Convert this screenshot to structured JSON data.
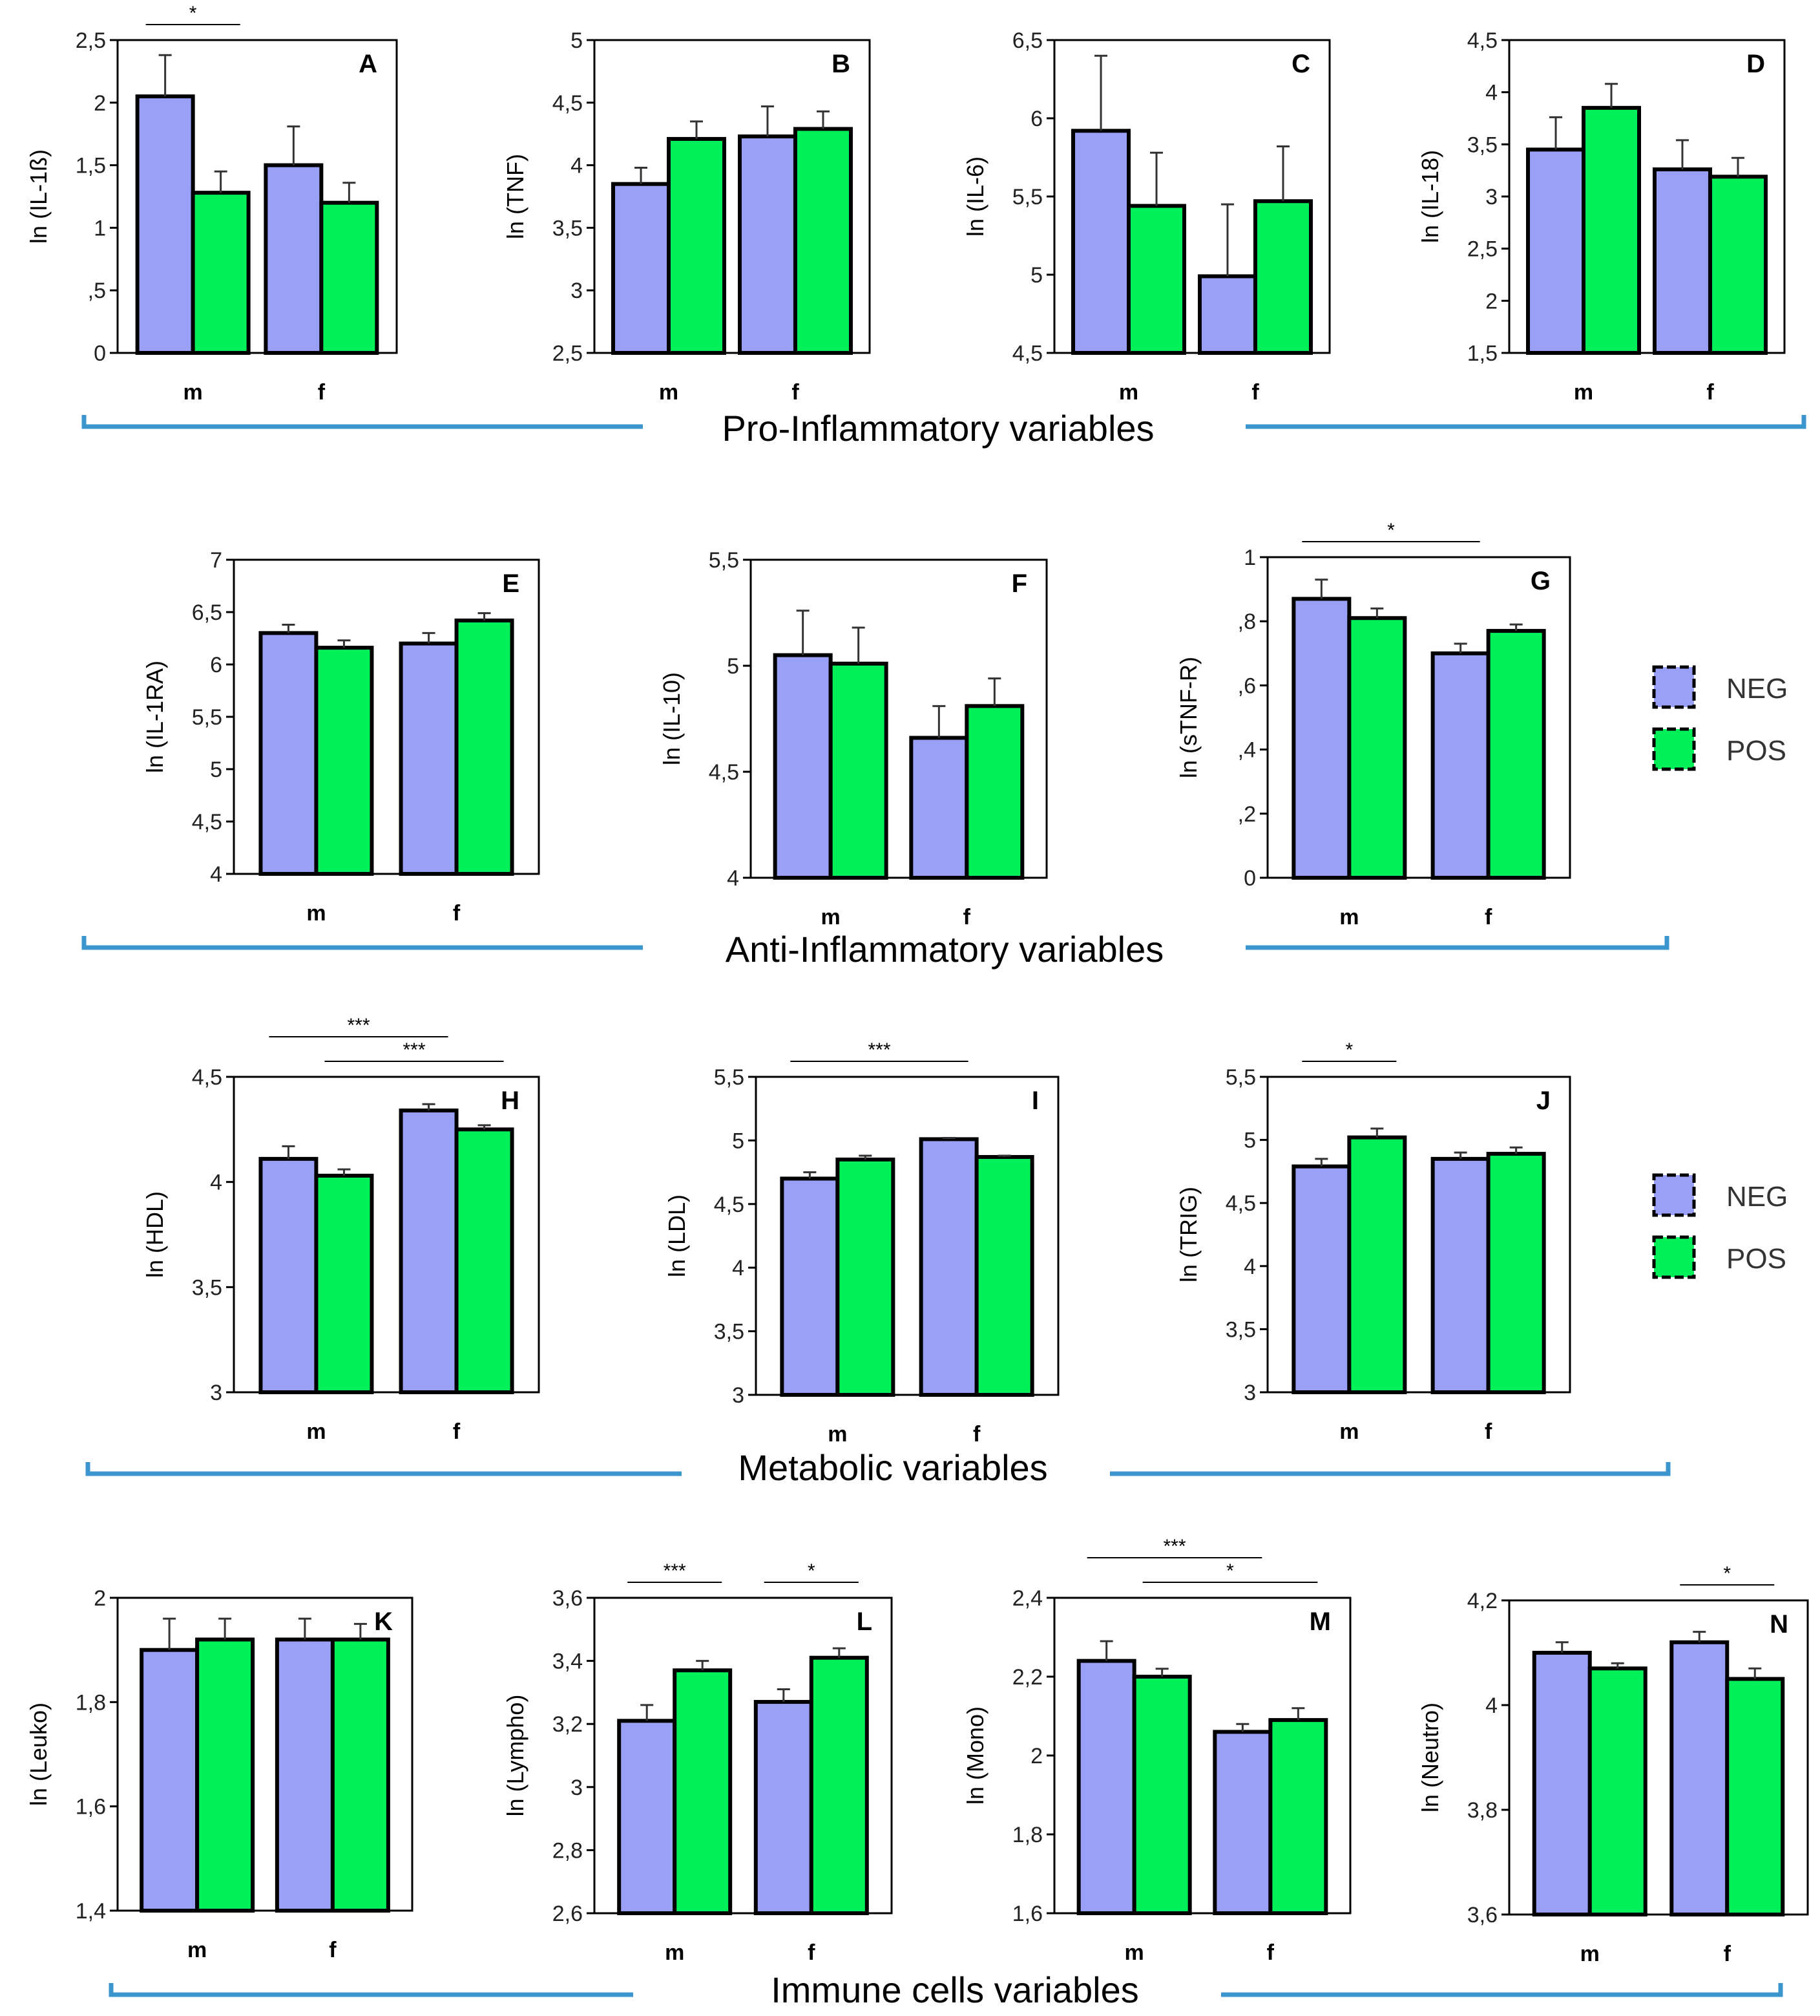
{
  "colors": {
    "NEG": "#9aa0f6",
    "POS": "#00f05a",
    "bracket": "#3a96cc",
    "axis": "#000000"
  },
  "legend": {
    "items": [
      {
        "key": "NEG",
        "label": "NEG"
      },
      {
        "key": "POS",
        "label": "POS"
      }
    ]
  },
  "groups": [
    {
      "id": "pro",
      "label": "Pro-Inflammatory variables"
    },
    {
      "id": "anti",
      "label": "Anti-Inflammatory variables"
    },
    {
      "id": "meta",
      "label": "Metabolic variables"
    },
    {
      "id": "immune",
      "label": "Immune cells variables"
    }
  ],
  "chart_data": [
    {
      "id": "A",
      "type": "bar",
      "letter": "A",
      "ylabel": "ln (IL-1ß)",
      "categories": [
        "m",
        "f"
      ],
      "ylim": [
        0,
        2.5
      ],
      "ticks": [
        "0",
        ",5",
        "1",
        "1,5",
        "2",
        "2,5"
      ],
      "series": [
        {
          "name": "NEG",
          "values": [
            2.05,
            1.5
          ],
          "errors": [
            0.33,
            0.31
          ]
        },
        {
          "name": "POS",
          "values": [
            1.28,
            1.2
          ],
          "errors": [
            0.17,
            0.16
          ]
        }
      ],
      "significance": [
        {
          "label": "*",
          "from": [
            "m",
            "NEG"
          ],
          "to": [
            "m",
            "POS"
          ],
          "level": 0
        }
      ]
    },
    {
      "id": "B",
      "type": "bar",
      "letter": "B",
      "ylabel": "ln (TNF)",
      "categories": [
        "m",
        "f"
      ],
      "ylim": [
        2.5,
        5
      ],
      "ticks": [
        "2,5",
        "3",
        "3,5",
        "4",
        "4,5",
        "5"
      ],
      "series": [
        {
          "name": "NEG",
          "values": [
            3.85,
            4.23
          ],
          "errors": [
            0.13,
            0.24
          ]
        },
        {
          "name": "POS",
          "values": [
            4.21,
            4.29
          ],
          "errors": [
            0.14,
            0.14
          ]
        }
      ],
      "significance": []
    },
    {
      "id": "C",
      "type": "bar",
      "letter": "C",
      "ylabel": "ln (IL-6)",
      "categories": [
        "m",
        "f"
      ],
      "ylim": [
        4.5,
        6.5
      ],
      "ticks": [
        "4,5",
        "5",
        "5,5",
        "6",
        "6,5"
      ],
      "series": [
        {
          "name": "NEG",
          "values": [
            5.92,
            4.99
          ],
          "errors": [
            0.48,
            0.46
          ]
        },
        {
          "name": "POS",
          "values": [
            5.44,
            5.47
          ],
          "errors": [
            0.34,
            0.35
          ]
        }
      ],
      "significance": []
    },
    {
      "id": "D",
      "type": "bar",
      "letter": "D",
      "ylabel": "ln (IL-18)",
      "categories": [
        "m",
        "f"
      ],
      "ylim": [
        1.5,
        4.5
      ],
      "ticks": [
        "1,5",
        "2",
        "2,5",
        "3",
        "3,5",
        "4",
        "4,5"
      ],
      "series": [
        {
          "name": "NEG",
          "values": [
            3.45,
            3.26
          ],
          "errors": [
            0.31,
            0.28
          ]
        },
        {
          "name": "POS",
          "values": [
            3.85,
            3.19
          ],
          "errors": [
            0.23,
            0.18
          ]
        }
      ],
      "significance": []
    },
    {
      "id": "E",
      "type": "bar",
      "letter": "E",
      "ylabel": "ln (IL-1RA)",
      "categories": [
        "m",
        "f"
      ],
      "ylim": [
        4,
        7
      ],
      "ticks": [
        "4",
        "4,5",
        "5",
        "5,5",
        "6",
        "6,5",
        "7"
      ],
      "series": [
        {
          "name": "NEG",
          "values": [
            6.3,
            6.2
          ],
          "errors": [
            0.08,
            0.1
          ]
        },
        {
          "name": "POS",
          "values": [
            6.16,
            6.42
          ],
          "errors": [
            0.07,
            0.07
          ]
        }
      ],
      "significance": []
    },
    {
      "id": "F",
      "type": "bar",
      "letter": "F",
      "ylabel": "ln (IL-10)",
      "categories": [
        "m",
        "f"
      ],
      "ylim": [
        4,
        5.5
      ],
      "ticks": [
        "4",
        "4,5",
        "5",
        "5,5"
      ],
      "series": [
        {
          "name": "NEG",
          "values": [
            5.05,
            4.66
          ],
          "errors": [
            0.21,
            0.15
          ]
        },
        {
          "name": "POS",
          "values": [
            5.01,
            4.81
          ],
          "errors": [
            0.17,
            0.13
          ]
        }
      ],
      "significance": []
    },
    {
      "id": "G",
      "type": "bar",
      "letter": "G",
      "ylabel": "ln (sTNF-R)",
      "categories": [
        "m",
        "f"
      ],
      "ylim": [
        0,
        1
      ],
      "ticks": [
        "0",
        ",2",
        ",4",
        ",6",
        ",8",
        "1"
      ],
      "series": [
        {
          "name": "NEG",
          "values": [
            0.87,
            0.7
          ],
          "errors": [
            0.06,
            0.03
          ]
        },
        {
          "name": "POS",
          "values": [
            0.81,
            0.77
          ],
          "errors": [
            0.03,
            0.02
          ]
        }
      ],
      "significance": [
        {
          "label": "*",
          "from": [
            "m",
            "NEG"
          ],
          "to": [
            "f",
            "NEG"
          ],
          "level": 0
        }
      ]
    },
    {
      "id": "H",
      "type": "bar",
      "letter": "H",
      "ylabel": "ln (HDL)",
      "categories": [
        "m",
        "f"
      ],
      "ylim": [
        3,
        4.5
      ],
      "ticks": [
        "3",
        "3,5",
        "4",
        "4,5"
      ],
      "series": [
        {
          "name": "NEG",
          "values": [
            4.11,
            4.34
          ],
          "errors": [
            0.06,
            0.03
          ]
        },
        {
          "name": "POS",
          "values": [
            4.03,
            4.25
          ],
          "errors": [
            0.03,
            0.02
          ]
        }
      ],
      "significance": [
        {
          "label": "***",
          "from": [
            "m",
            "NEG"
          ],
          "to": [
            "f",
            "NEG"
          ],
          "level": 1
        },
        {
          "label": "***",
          "from": [
            "m",
            "POS"
          ],
          "to": [
            "f",
            "POS"
          ],
          "level": 0
        }
      ]
    },
    {
      "id": "I",
      "type": "bar",
      "letter": "I",
      "ylabel": "ln (LDL)",
      "categories": [
        "m",
        "f"
      ],
      "ylim": [
        3,
        5.5
      ],
      "ticks": [
        "3",
        "3,5",
        "4",
        "4,5",
        "5",
        "5,5"
      ],
      "series": [
        {
          "name": "NEG",
          "values": [
            4.7,
            5.01
          ],
          "errors": [
            0.05,
            0.01
          ]
        },
        {
          "name": "POS",
          "values": [
            4.85,
            4.87
          ],
          "errors": [
            0.03,
            0.01
          ]
        }
      ],
      "significance": [
        {
          "label": "***",
          "from": [
            "m",
            "NEG"
          ],
          "to": [
            "f",
            "NEG"
          ],
          "level": 0
        }
      ]
    },
    {
      "id": "J",
      "type": "bar",
      "letter": "J",
      "ylabel": "ln (TRIG)",
      "categories": [
        "m",
        "f"
      ],
      "ylim": [
        3,
        5.5
      ],
      "ticks": [
        "3",
        "3,5",
        "4",
        "4,5",
        "5",
        "5,5"
      ],
      "series": [
        {
          "name": "NEG",
          "values": [
            4.79,
            4.85
          ],
          "errors": [
            0.06,
            0.05
          ]
        },
        {
          "name": "POS",
          "values": [
            5.02,
            4.89
          ],
          "errors": [
            0.07,
            0.05
          ]
        }
      ],
      "significance": [
        {
          "label": "*",
          "from": [
            "m",
            "NEG"
          ],
          "to": [
            "m",
            "POS"
          ],
          "level": 0
        }
      ]
    },
    {
      "id": "K",
      "type": "bar",
      "letter": "K",
      "ylabel": "ln (Leuko)",
      "categories": [
        "m",
        "f"
      ],
      "ylim": [
        1.4,
        2
      ],
      "ticks": [
        "1,4",
        "1,6",
        "1,8",
        "2"
      ],
      "series": [
        {
          "name": "NEG",
          "values": [
            1.9,
            1.92
          ],
          "errors": [
            0.06,
            0.04
          ]
        },
        {
          "name": "POS",
          "values": [
            1.92,
            1.92
          ],
          "errors": [
            0.04,
            0.03
          ]
        }
      ],
      "significance": []
    },
    {
      "id": "L",
      "type": "bar",
      "letter": "L",
      "ylabel": "ln (Lympho)",
      "categories": [
        "m",
        "f"
      ],
      "ylim": [
        2.6,
        3.6
      ],
      "ticks": [
        "2,6",
        "2,8",
        "3",
        "3,2",
        "3,4",
        "3,6"
      ],
      "series": [
        {
          "name": "NEG",
          "values": [
            3.21,
            3.27
          ],
          "errors": [
            0.05,
            0.04
          ]
        },
        {
          "name": "POS",
          "values": [
            3.37,
            3.41
          ],
          "errors": [
            0.03,
            0.03
          ]
        }
      ],
      "significance": [
        {
          "label": "***",
          "from": [
            "m",
            "NEG"
          ],
          "to": [
            "m",
            "POS"
          ],
          "level": 0
        },
        {
          "label": "*",
          "from": [
            "f",
            "NEG"
          ],
          "to": [
            "f",
            "POS"
          ],
          "level": 0
        }
      ]
    },
    {
      "id": "M",
      "type": "bar",
      "letter": "M",
      "ylabel": "ln (Mono)",
      "categories": [
        "m",
        "f"
      ],
      "ylim": [
        1.6,
        2.4
      ],
      "ticks": [
        "1,6",
        "1,8",
        "2",
        "2,2",
        "2,4"
      ],
      "series": [
        {
          "name": "NEG",
          "values": [
            2.24,
            2.06
          ],
          "errors": [
            0.05,
            0.02
          ]
        },
        {
          "name": "POS",
          "values": [
            2.2,
            2.09
          ],
          "errors": [
            0.02,
            0.03
          ]
        }
      ],
      "significance": [
        {
          "label": "***",
          "from": [
            "m",
            "NEG"
          ],
          "to": [
            "f",
            "NEG"
          ],
          "level": 1
        },
        {
          "label": "*",
          "from": [
            "m",
            "POS"
          ],
          "to": [
            "f",
            "POS"
          ],
          "level": 0
        }
      ]
    },
    {
      "id": "N",
      "type": "bar",
      "letter": "N",
      "ylabel": "ln (Neutro)",
      "categories": [
        "m",
        "f"
      ],
      "ylim": [
        3.6,
        4.2
      ],
      "ticks": [
        "3,6",
        "3,8",
        "4",
        "4,2"
      ],
      "series": [
        {
          "name": "NEG",
          "values": [
            4.1,
            4.12
          ],
          "errors": [
            0.02,
            0.02
          ]
        },
        {
          "name": "POS",
          "values": [
            4.07,
            4.05
          ],
          "errors": [
            0.01,
            0.02
          ]
        }
      ],
      "significance": [
        {
          "label": "*",
          "from": [
            "f",
            "NEG"
          ],
          "to": [
            "f",
            "POS"
          ],
          "level": 0
        }
      ]
    }
  ]
}
